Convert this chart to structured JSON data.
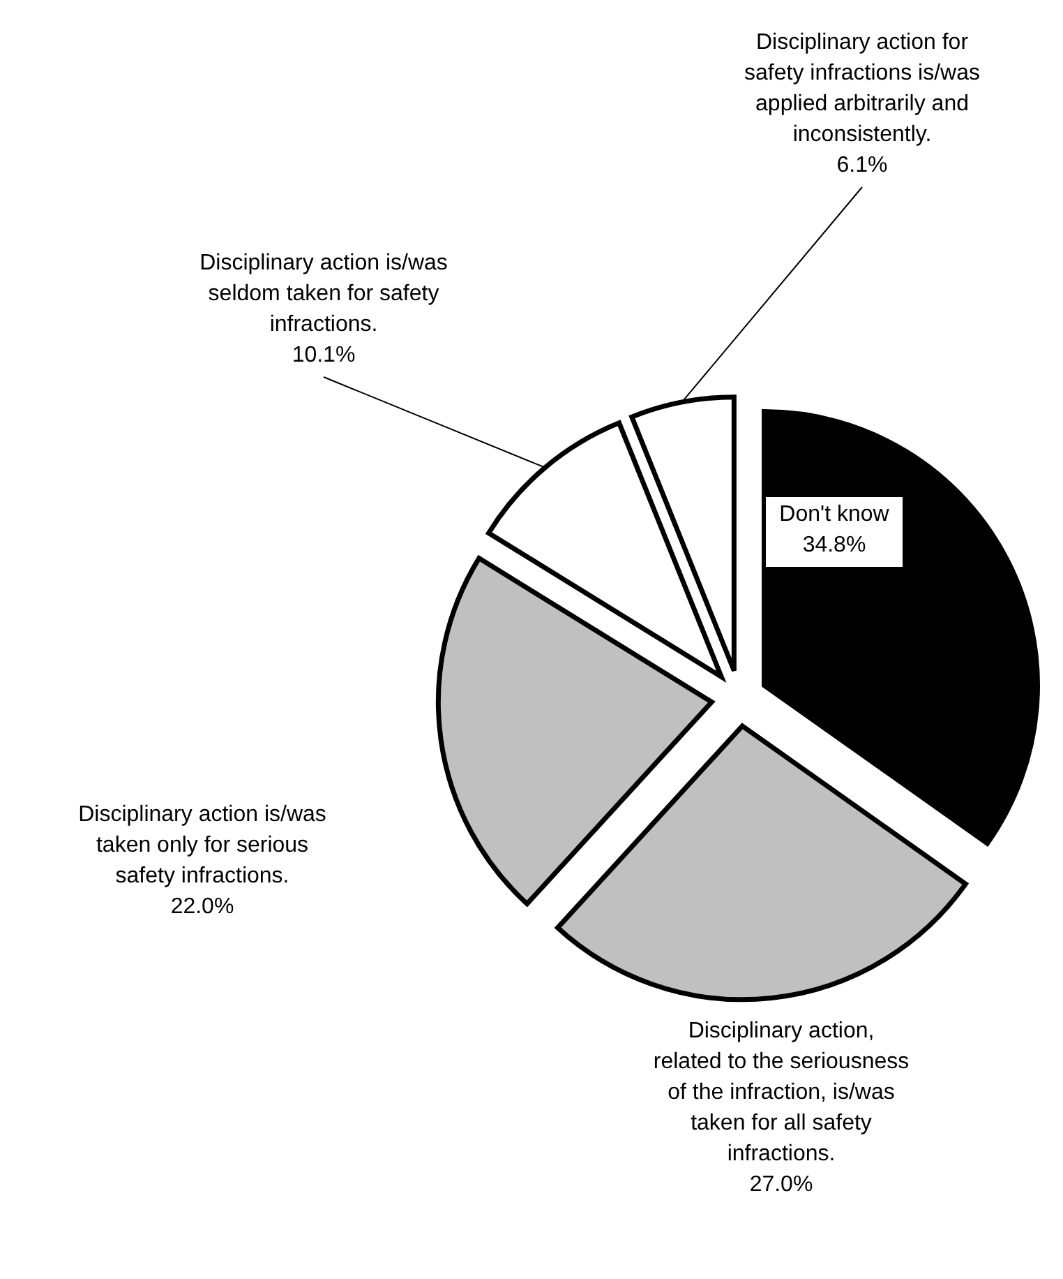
{
  "chart_data": {
    "type": "pie",
    "categories": [
      "Don't know",
      "Disciplinary action, related to the seriousness of the infraction, is/was taken for all safety infractions.",
      "Disciplinary action is/was taken only for serious safety infractions.",
      "Disciplinary action is/was seldom taken for  safety infractions.",
      "Disciplinary action for safety infractions is/was applied arbitrarily and inconsistently."
    ],
    "values": [
      34.8,
      27.0,
      22.0,
      10.1,
      6.1
    ],
    "colors": [
      "#000000",
      "#c0c0c0",
      "#c0c0c0",
      "#ffffff",
      "#ffffff"
    ],
    "value_labels": [
      "34.8%",
      "27.0%",
      "22.0%",
      "10.1%",
      "6.1%"
    ]
  }
}
